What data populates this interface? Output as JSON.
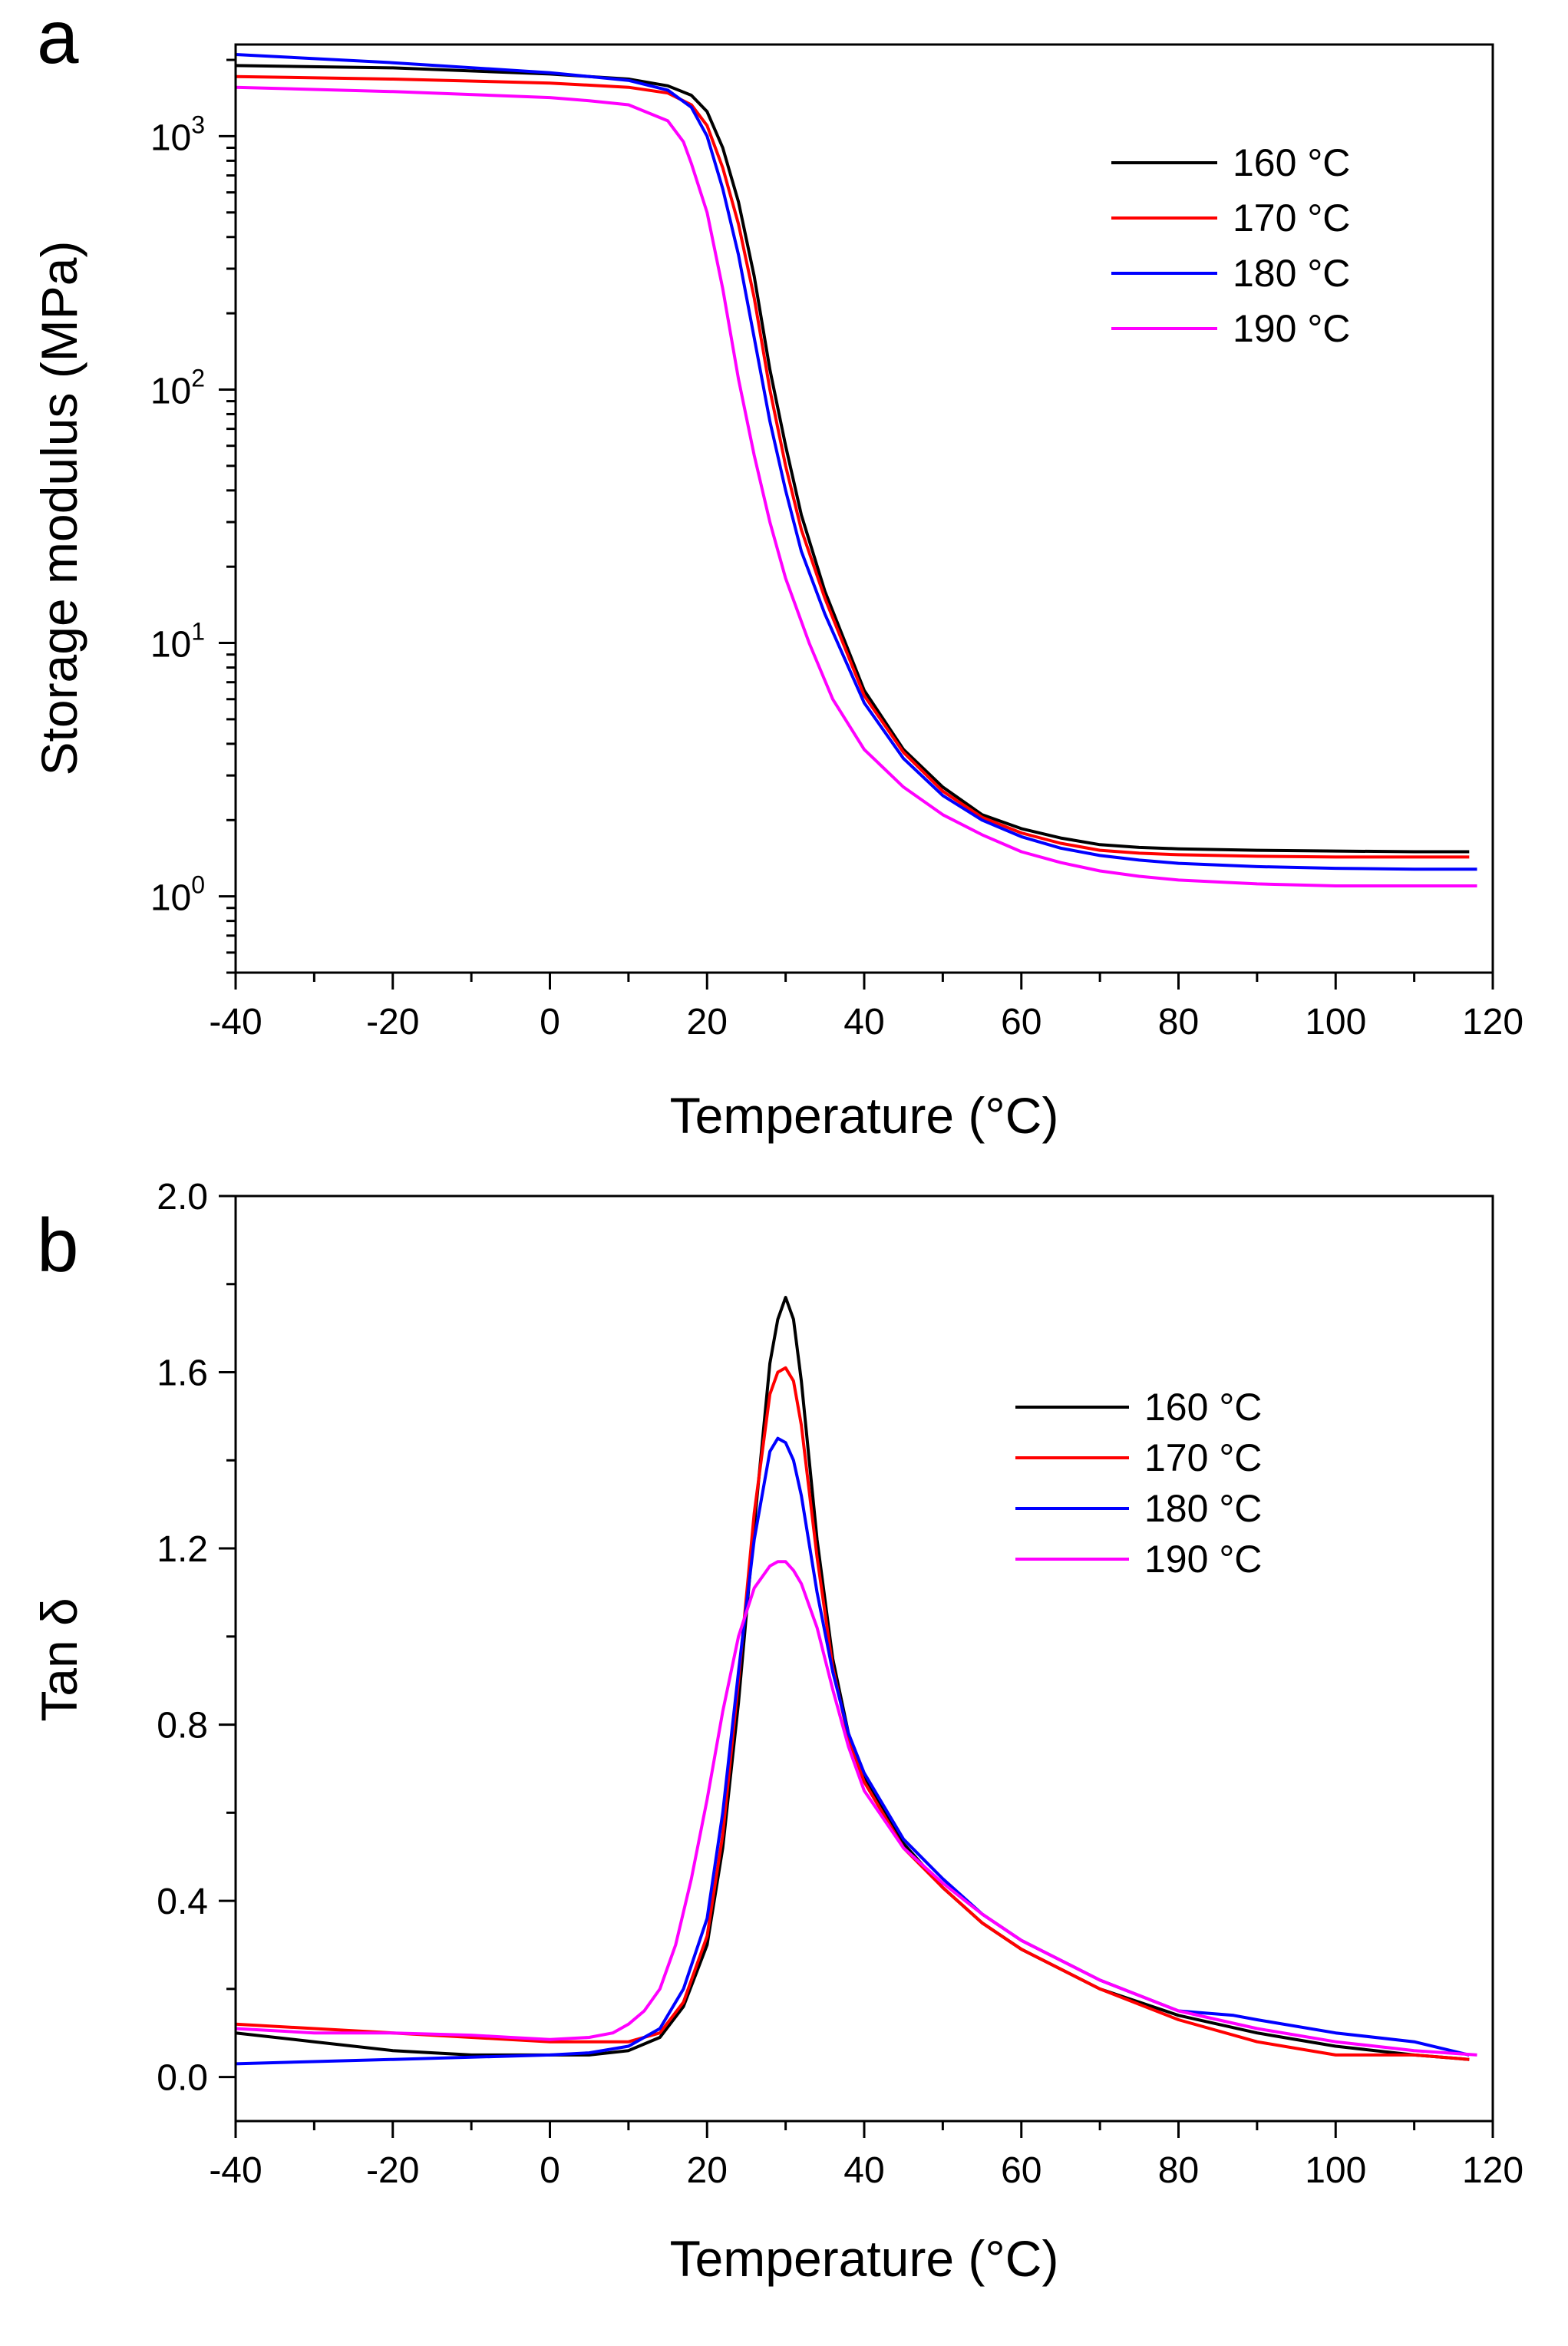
{
  "figure": {
    "panels": [
      "a",
      "b"
    ]
  },
  "chart_data": [
    {
      "panel": "a",
      "type": "line",
      "title": "",
      "xlabel": "Temperature (°C)",
      "ylabel": "Storage modulus (MPa)",
      "xlim": [
        -40,
        120
      ],
      "ylim": [
        0.5,
        2300
      ],
      "yscale": "log",
      "xticks": [
        -40,
        -20,
        0,
        20,
        40,
        60,
        80,
        100,
        120
      ],
      "xtick_labels": [
        "-40",
        "-20",
        "0",
        "20",
        "40",
        "60",
        "80",
        "100",
        "120"
      ],
      "yticks": [
        {
          "value": 1,
          "base": "10",
          "exp": "0"
        },
        {
          "value": 10,
          "base": "10",
          "exp": "1"
        },
        {
          "value": 100,
          "base": "10",
          "exp": "2"
        },
        {
          "value": 1000,
          "base": "10",
          "exp": "3"
        }
      ],
      "legend": {
        "position": "top-right"
      },
      "series": [
        {
          "name": "160 °C",
          "color": "#000000",
          "x": [
            -40,
            -20,
            0,
            10,
            15,
            18,
            20,
            22,
            24,
            26,
            28,
            30,
            32,
            35,
            40,
            45,
            50,
            55,
            60,
            65,
            70,
            75,
            80,
            90,
            100,
            110,
            117
          ],
          "y": [
            1900,
            1860,
            1760,
            1680,
            1580,
            1450,
            1250,
            900,
            550,
            280,
            120,
            60,
            32,
            16,
            6.5,
            3.8,
            2.7,
            2.1,
            1.85,
            1.7,
            1.6,
            1.56,
            1.54,
            1.52,
            1.51,
            1.5,
            1.5
          ]
        },
        {
          "name": "170 °C",
          "color": "#ff0000",
          "x": [
            -40,
            -20,
            0,
            10,
            15,
            18,
            20,
            22,
            24,
            26,
            28,
            30,
            32,
            35,
            40,
            45,
            50,
            55,
            60,
            65,
            70,
            75,
            80,
            90,
            100,
            110,
            117
          ],
          "y": [
            1720,
            1680,
            1620,
            1560,
            1480,
            1330,
            1100,
            750,
            450,
            230,
            100,
            50,
            28,
            15,
            6.2,
            3.7,
            2.6,
            2.05,
            1.78,
            1.62,
            1.52,
            1.48,
            1.46,
            1.44,
            1.43,
            1.43,
            1.43
          ]
        },
        {
          "name": "180 °C",
          "color": "#0000ff",
          "x": [
            -40,
            -20,
            0,
            10,
            15,
            18,
            20,
            22,
            24,
            26,
            28,
            30,
            32,
            35,
            40,
            45,
            50,
            55,
            60,
            65,
            70,
            75,
            80,
            90,
            100,
            110,
            118
          ],
          "y": [
            2100,
            1950,
            1780,
            1660,
            1520,
            1300,
            1000,
            620,
            340,
            160,
            75,
            40,
            23,
            13,
            5.8,
            3.5,
            2.5,
            2.0,
            1.72,
            1.55,
            1.45,
            1.39,
            1.35,
            1.31,
            1.29,
            1.28,
            1.28
          ]
        },
        {
          "name": "190 °C",
          "color": "#ff00ff",
          "x": [
            -40,
            -20,
            0,
            5,
            10,
            15,
            17,
            18,
            20,
            22,
            24,
            26,
            28,
            30,
            33,
            36,
            40,
            45,
            50,
            55,
            60,
            65,
            70,
            75,
            80,
            90,
            100,
            110,
            118
          ],
          "y": [
            1560,
            1500,
            1420,
            1380,
            1330,
            1150,
            950,
            780,
            500,
            250,
            110,
            55,
            30,
            18,
            10,
            6.0,
            3.8,
            2.7,
            2.1,
            1.75,
            1.5,
            1.36,
            1.26,
            1.2,
            1.16,
            1.12,
            1.1,
            1.1,
            1.1
          ]
        }
      ]
    },
    {
      "panel": "b",
      "type": "line",
      "title": "",
      "xlabel": "Temperature (°C)",
      "ylabel": "Tan δ",
      "xlim": [
        -40,
        120
      ],
      "ylim": [
        -0.1,
        2.0
      ],
      "yscale": "linear",
      "xticks": [
        -40,
        -20,
        0,
        20,
        40,
        60,
        80,
        100,
        120
      ],
      "xtick_labels": [
        "-40",
        "-20",
        "0",
        "20",
        "40",
        "60",
        "80",
        "100",
        "120"
      ],
      "yticks": [
        0.0,
        0.4,
        0.8,
        1.2,
        1.6,
        2.0
      ],
      "ytick_labels": [
        "0.0",
        "0.4",
        "0.8",
        "1.2",
        "1.6",
        "2.0"
      ],
      "legend": {
        "position": "center-right"
      },
      "series": [
        {
          "name": "160 °C",
          "color": "#000000",
          "x": [
            -40,
            -30,
            -20,
            -10,
            0,
            5,
            10,
            14,
            17,
            20,
            22,
            24,
            26,
            28,
            29,
            30,
            31,
            32,
            34,
            36,
            38,
            40,
            45,
            50,
            55,
            60,
            70,
            80,
            90,
            100,
            110,
            117
          ],
          "y": [
            0.1,
            0.08,
            0.06,
            0.05,
            0.05,
            0.05,
            0.06,
            0.09,
            0.16,
            0.3,
            0.52,
            0.85,
            1.25,
            1.62,
            1.72,
            1.77,
            1.72,
            1.58,
            1.22,
            0.95,
            0.78,
            0.68,
            0.53,
            0.43,
            0.35,
            0.29,
            0.2,
            0.14,
            0.1,
            0.07,
            0.05,
            0.04
          ]
        },
        {
          "name": "170 °C",
          "color": "#ff0000",
          "x": [
            -40,
            -30,
            -20,
            -10,
            0,
            5,
            10,
            14,
            17,
            20,
            22,
            24,
            26,
            28,
            29,
            30,
            31,
            32,
            34,
            36,
            38,
            40,
            45,
            50,
            55,
            60,
            70,
            80,
            90,
            100,
            110,
            117
          ],
          "y": [
            0.12,
            0.11,
            0.1,
            0.09,
            0.08,
            0.08,
            0.08,
            0.1,
            0.17,
            0.32,
            0.55,
            0.9,
            1.28,
            1.55,
            1.6,
            1.61,
            1.58,
            1.48,
            1.18,
            0.93,
            0.77,
            0.67,
            0.52,
            0.43,
            0.35,
            0.29,
            0.2,
            0.13,
            0.08,
            0.05,
            0.05,
            0.04
          ]
        },
        {
          "name": "180 °C",
          "color": "#0000ff",
          "x": [
            -40,
            -30,
            -20,
            -10,
            0,
            5,
            10,
            14,
            17,
            20,
            22,
            24,
            26,
            28,
            29,
            30,
            31,
            32,
            34,
            36,
            38,
            40,
            45,
            50,
            55,
            60,
            70,
            80,
            87,
            90,
            100,
            110,
            117
          ],
          "y": [
            0.03,
            0.035,
            0.04,
            0.045,
            0.05,
            0.055,
            0.07,
            0.11,
            0.2,
            0.36,
            0.6,
            0.92,
            1.22,
            1.42,
            1.45,
            1.44,
            1.4,
            1.32,
            1.1,
            0.92,
            0.78,
            0.69,
            0.54,
            0.45,
            0.37,
            0.31,
            0.22,
            0.15,
            0.14,
            0.13,
            0.1,
            0.08,
            0.05
          ]
        },
        {
          "name": "190 °C",
          "color": "#ff00ff",
          "x": [
            -40,
            -30,
            -20,
            -10,
            -5,
            0,
            5,
            8,
            10,
            12,
            14,
            16,
            18,
            20,
            22,
            24,
            26,
            28,
            29,
            30,
            31,
            32,
            34,
            36,
            38,
            40,
            45,
            50,
            55,
            60,
            70,
            80,
            90,
            100,
            110,
            118
          ],
          "y": [
            0.11,
            0.1,
            0.1,
            0.095,
            0.09,
            0.085,
            0.09,
            0.1,
            0.12,
            0.15,
            0.2,
            0.3,
            0.45,
            0.63,
            0.83,
            1.0,
            1.11,
            1.16,
            1.17,
            1.17,
            1.15,
            1.12,
            1.02,
            0.88,
            0.75,
            0.65,
            0.52,
            0.44,
            0.37,
            0.31,
            0.22,
            0.15,
            0.11,
            0.08,
            0.06,
            0.05
          ]
        }
      ]
    }
  ]
}
